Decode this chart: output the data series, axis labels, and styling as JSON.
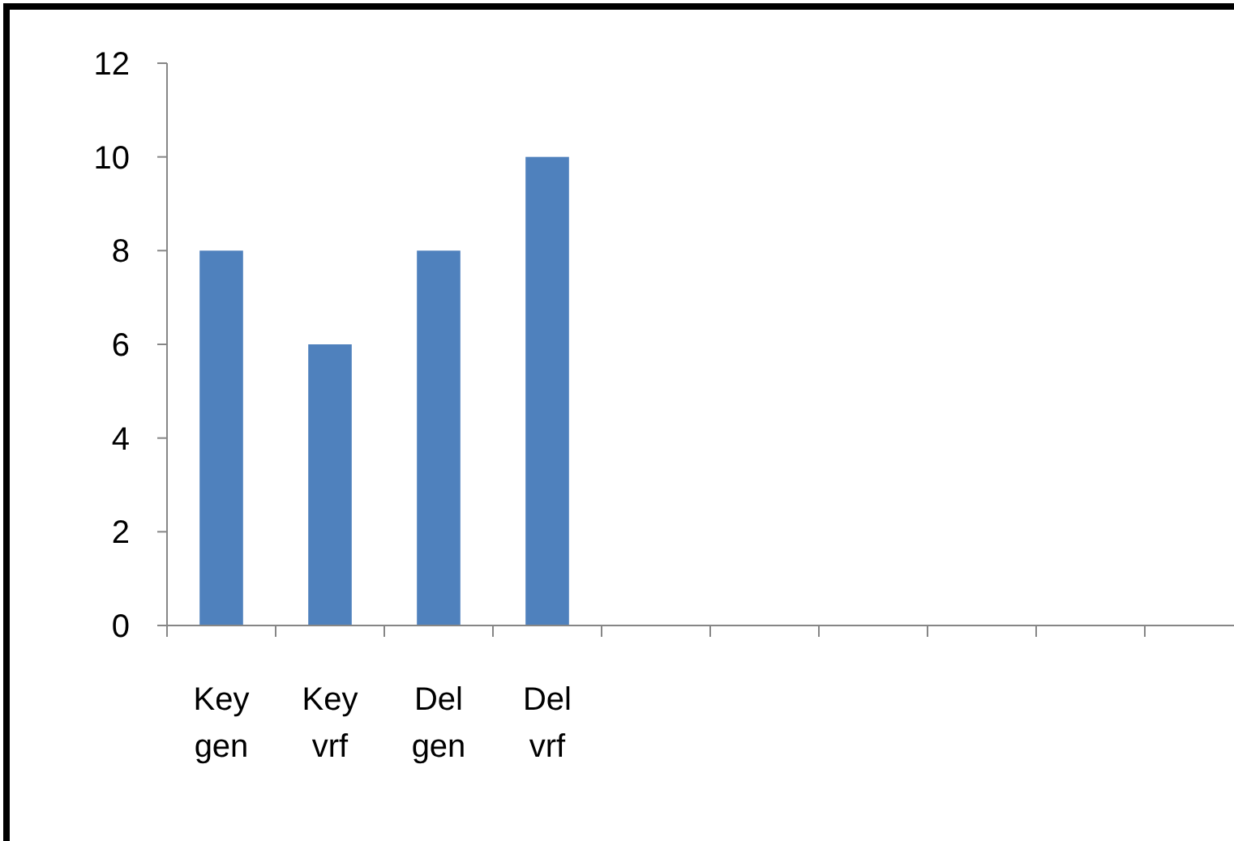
{
  "chart_data": {
    "type": "bar",
    "categories": [
      "Key gen",
      "Key vrf",
      "Del gen",
      "Del vrf",
      null,
      null,
      null,
      null,
      null,
      null
    ],
    "values": [
      8,
      6,
      8,
      10,
      null,
      null,
      null,
      null,
      null,
      null
    ],
    "color": "#4f81bd",
    "ylim": [
      0,
      12
    ],
    "yticks": [
      0,
      2,
      4,
      6,
      8,
      10,
      12
    ],
    "grid": false
  }
}
